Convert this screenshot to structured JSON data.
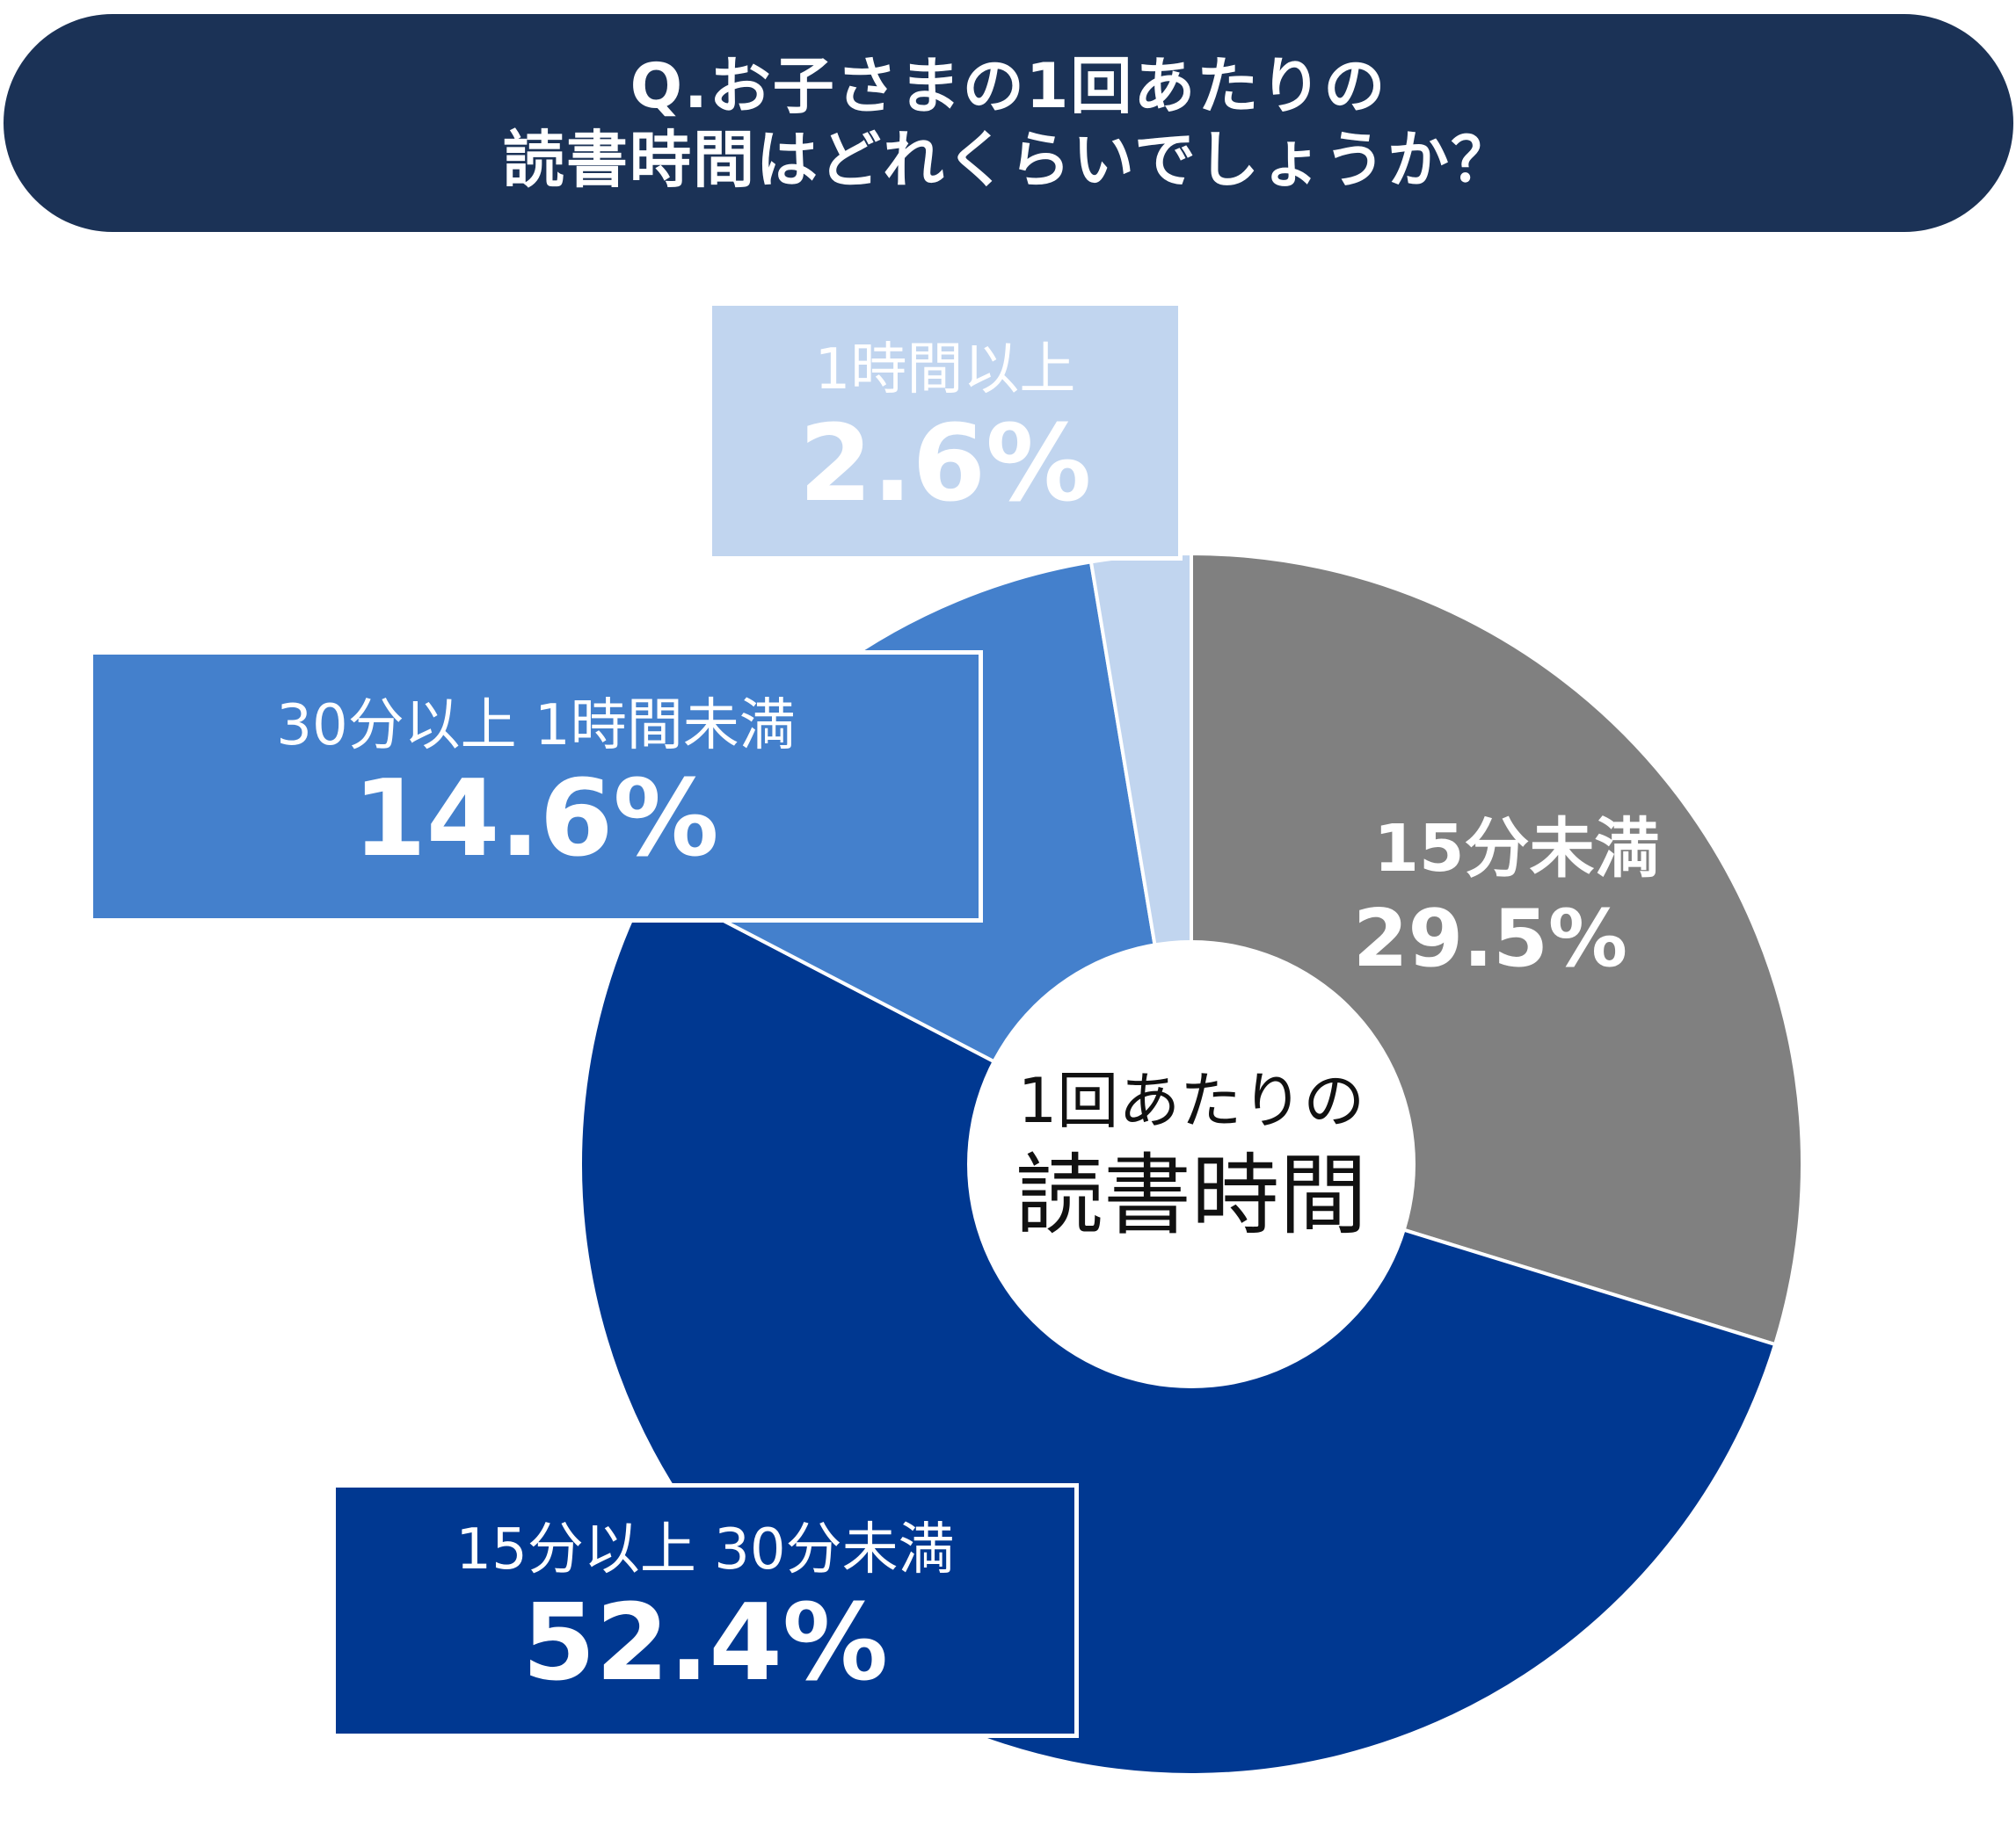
{
  "title": {
    "line1": "Q.お子さまの1回あたりの",
    "line2": "読書時間はどれくらいでしょうか？"
  },
  "center_label": {
    "line1": "1回あたりの",
    "line2": "読書時間"
  },
  "colors": {
    "title_background": "#1b3256",
    "under_15": "#808080",
    "15_to_30": "#003891",
    "30_to_60": "#4480cc",
    "over_60": "#c1d5ef"
  },
  "chart_data": {
    "type": "pie",
    "style": "donut",
    "title": "Q.お子さまの1回あたりの読書時間はどれくらいでしょうか？",
    "center_text": "1回あたりの読書時間",
    "start": "12 o'clock, clockwise",
    "slices": [
      {
        "label": "15分未満",
        "value": 29.5,
        "display": "29.5%",
        "color": "#808080"
      },
      {
        "label": "15分以上 30分未満",
        "value": 52.4,
        "display": "52.4%",
        "color": "#003891"
      },
      {
        "label": "30分以上 1時間未満",
        "value": 14.6,
        "display": "14.6%",
        "color": "#4480cc"
      },
      {
        "label": "1時間以上",
        "value": 2.6,
        "display": "2.6%",
        "color": "#c1d5ef"
      }
    ]
  }
}
